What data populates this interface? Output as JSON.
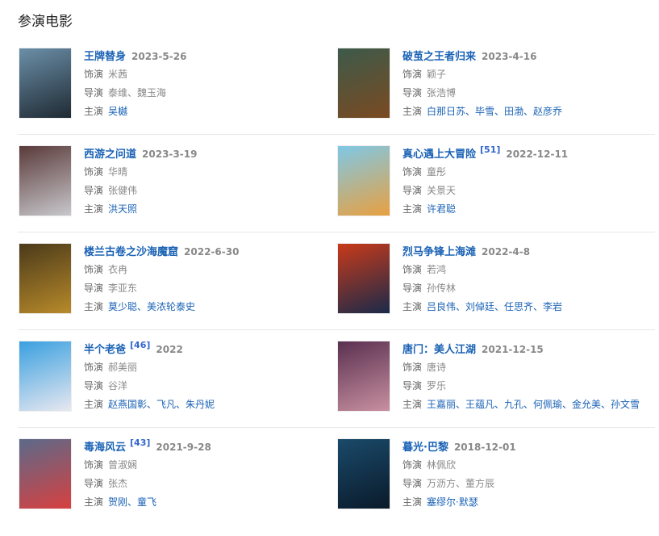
{
  "section_title": "参演电影",
  "labels": {
    "role": "饰演",
    "director": "导演",
    "starring": "主演"
  },
  "movies": [
    {
      "title": "王牌替身",
      "ref": "",
      "date": "2023-5-26",
      "role": "米茜",
      "director": "泰维、魏玉海",
      "starring": "吴樾",
      "poster_colors": [
        "#6b8fa8",
        "#1f2a33"
      ]
    },
    {
      "title": "破茧之王者归来",
      "ref": "",
      "date": "2023-4-16",
      "role": "颖子",
      "director": "张浩博",
      "starring": "白那日苏、毕雪、田渤、赵彦乔",
      "poster_colors": [
        "#3d5a4a",
        "#7a4a22"
      ]
    },
    {
      "title": "西游之问道",
      "ref": "",
      "date": "2023-3-19",
      "role": "华晴",
      "director": "张健伟",
      "starring": "洪天照",
      "poster_colors": [
        "#5a3a3a",
        "#c8c8cc"
      ]
    },
    {
      "title": "真心遇上大冒险",
      "ref": "[51]",
      "date": "2022-12-11",
      "role": "童彤",
      "director": "关景天",
      "starring": "许君聪",
      "poster_colors": [
        "#7fc8e6",
        "#e8a040"
      ]
    },
    {
      "title": "楼兰古卷之沙海魔窟",
      "ref": "",
      "date": "2022-6-30",
      "role": "衣冉",
      "director": "李亚东",
      "starring": "莫少聪、美浓轮泰史",
      "poster_colors": [
        "#4a3a1a",
        "#b88a2a"
      ]
    },
    {
      "title": "烈马争锋上海滩",
      "ref": "",
      "date": "2022-4-8",
      "role": "若鸿",
      "director": "孙传林",
      "starring": "吕良伟、刘倬廷、任思齐、李岩",
      "poster_colors": [
        "#c83a1a",
        "#1a2a4a"
      ]
    },
    {
      "title": "半个老爸",
      "ref": "[46]",
      "date": "2022",
      "role": "郝美丽",
      "director": "谷洋",
      "starring": "赵燕国彰、飞凡、朱丹妮",
      "poster_colors": [
        "#3aa0e0",
        "#e8e8f0"
      ]
    },
    {
      "title": "唐门：美人江湖",
      "ref": "",
      "date": "2021-12-15",
      "role": "唐诗",
      "director": "罗乐",
      "starring": "王嘉丽、王蕴凡、九孔、何佩瑜、金允美、孙文雪",
      "poster_colors": [
        "#5a3050",
        "#c890a0"
      ]
    },
    {
      "title": "毒海风云",
      "ref": "[43]",
      "date": "2021-9-28",
      "role": "曾淑娴",
      "director": "张杰",
      "starring": "贺刚、童飞",
      "poster_colors": [
        "#5a6a8a",
        "#d84040"
      ]
    },
    {
      "title": "暮光·巴黎",
      "ref": "",
      "date": "2018-12-01",
      "role": "林佩欣",
      "director": "万沥方、董方辰",
      "starring": "塞缪尔·默瑟",
      "poster_colors": [
        "#1a4a6a",
        "#0a1a2a"
      ]
    }
  ]
}
